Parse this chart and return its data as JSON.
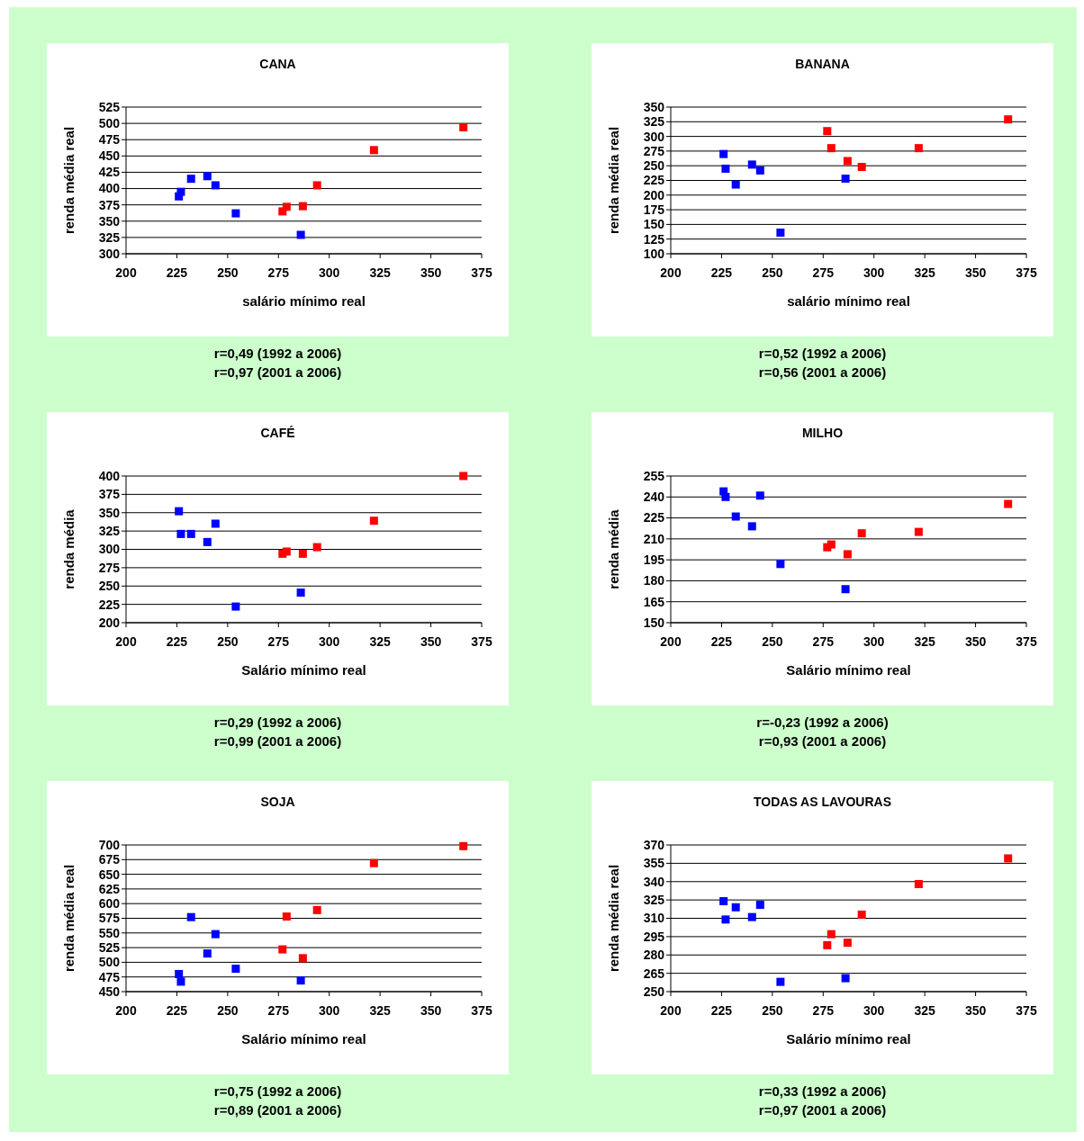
{
  "chart_data": [
    {
      "type": "scatter",
      "title": "CANA",
      "xlabel": "salário mínimo real",
      "ylabel": "renda média real",
      "xlim": [
        200,
        375
      ],
      "xticks": [
        200,
        225,
        250,
        275,
        300,
        325,
        350,
        375
      ],
      "ylim": [
        300,
        525
      ],
      "yticks": [
        300,
        325,
        350,
        375,
        400,
        425,
        450,
        475,
        500,
        525
      ],
      "grid": "y",
      "marker": "square",
      "series": [
        {
          "color": "#0000ff",
          "x": [
            226,
            227,
            232,
            240,
            244,
            254,
            286
          ],
          "values": [
            388,
            395,
            415,
            419,
            405,
            362,
            329
          ]
        },
        {
          "color": "#ff0000",
          "x": [
            277,
            279,
            287,
            294,
            322,
            366
          ],
          "values": [
            365,
            372,
            373,
            405,
            459,
            494
          ]
        }
      ],
      "annotations": [
        "r=0,49 (1992 a 2006)",
        "r=0,97 (2001 a 2006)"
      ]
    },
    {
      "type": "scatter",
      "title": "BANANA",
      "xlabel": "salário mínimo real",
      "ylabel": "renda média real",
      "xlim": [
        200,
        375
      ],
      "xticks": [
        200,
        225,
        250,
        275,
        300,
        325,
        350,
        375
      ],
      "ylim": [
        100,
        350
      ],
      "yticks": [
        100,
        125,
        150,
        175,
        200,
        225,
        250,
        275,
        300,
        325,
        350
      ],
      "grid": "y",
      "marker": "square",
      "series": [
        {
          "color": "#0000ff",
          "x": [
            226,
            227,
            232,
            240,
            244,
            254,
            286
          ],
          "values": [
            270,
            245,
            218,
            252,
            242,
            136,
            228
          ]
        },
        {
          "color": "#ff0000",
          "x": [
            277,
            279,
            287,
            294,
            322,
            366
          ],
          "values": [
            309,
            280,
            258,
            248,
            280,
            329
          ]
        }
      ],
      "annotations": [
        "r=0,52 (1992 a 2006)",
        "r=0,56 (2001 a 2006)"
      ]
    },
    {
      "type": "scatter",
      "title": "CAFÉ",
      "xlabel": "Salário mínimo real",
      "ylabel": "renda média",
      "xlim": [
        200,
        375
      ],
      "xticks": [
        200,
        225,
        250,
        275,
        300,
        325,
        350,
        375
      ],
      "ylim": [
        200,
        400
      ],
      "yticks": [
        200,
        225,
        250,
        275,
        300,
        325,
        350,
        375,
        400
      ],
      "grid": "y",
      "marker": "square",
      "series": [
        {
          "color": "#0000ff",
          "x": [
            226,
            227,
            232,
            240,
            244,
            254,
            286
          ],
          "values": [
            352,
            321,
            321,
            310,
            335,
            222,
            241
          ]
        },
        {
          "color": "#ff0000",
          "x": [
            277,
            279,
            287,
            294,
            322,
            366
          ],
          "values": [
            294,
            297,
            294,
            303,
            339,
            400
          ]
        }
      ],
      "annotations": [
        "r=0,29 (1992 a 2006)",
        "r=0,99 (2001 a 2006)"
      ]
    },
    {
      "type": "scatter",
      "title": "MILHO",
      "xlabel": "Salário mínimo real",
      "ylabel": "renda média",
      "xlim": [
        200,
        375
      ],
      "xticks": [
        200,
        225,
        250,
        275,
        300,
        325,
        350,
        375
      ],
      "ylim": [
        150,
        255
      ],
      "yticks": [
        150,
        165,
        180,
        195,
        210,
        225,
        240,
        255
      ],
      "grid": "y",
      "marker": "square",
      "series": [
        {
          "color": "#0000ff",
          "x": [
            226,
            227,
            232,
            240,
            244,
            254,
            286
          ],
          "values": [
            244,
            240,
            226,
            219,
            241,
            192,
            174
          ]
        },
        {
          "color": "#ff0000",
          "x": [
            277,
            279,
            287,
            294,
            322,
            366
          ],
          "values": [
            204,
            206,
            199,
            214,
            215,
            235
          ]
        }
      ],
      "annotations": [
        "r=-0,23 (1992 a 2006)",
        "r=0,93 (2001 a 2006)"
      ]
    },
    {
      "type": "scatter",
      "title": "SOJA",
      "xlabel": "Salário mínimo real",
      "ylabel": "renda média real",
      "xlim": [
        200,
        375
      ],
      "xticks": [
        200,
        225,
        250,
        275,
        300,
        325,
        350,
        375
      ],
      "ylim": [
        450,
        700
      ],
      "yticks": [
        450,
        475,
        500,
        525,
        550,
        575,
        600,
        625,
        650,
        675,
        700
      ],
      "grid": "y",
      "marker": "square",
      "series": [
        {
          "color": "#0000ff",
          "x": [
            226,
            227,
            232,
            240,
            244,
            254,
            286
          ],
          "values": [
            480,
            467,
            577,
            515,
            548,
            489,
            469
          ]
        },
        {
          "color": "#ff0000",
          "x": [
            277,
            279,
            287,
            294,
            322,
            366
          ],
          "values": [
            522,
            578,
            507,
            589,
            669,
            698
          ]
        }
      ],
      "annotations": [
        "r=0,75 (1992 a 2006)",
        "r=0,89 (2001 a 2006)"
      ]
    },
    {
      "type": "scatter",
      "title": "TODAS AS LAVOURAS",
      "xlabel": "Salário mínimo real",
      "ylabel": "renda média real",
      "xlim": [
        200,
        375
      ],
      "xticks": [
        200,
        225,
        250,
        275,
        300,
        325,
        350,
        375
      ],
      "ylim": [
        250,
        370
      ],
      "yticks": [
        250,
        265,
        280,
        295,
        310,
        325,
        340,
        355,
        370
      ],
      "grid": "y",
      "marker": "square",
      "series": [
        {
          "color": "#0000ff",
          "x": [
            226,
            227,
            232,
            240,
            244,
            254,
            286
          ],
          "values": [
            324,
            309,
            319,
            311,
            321,
            258,
            261
          ]
        },
        {
          "color": "#ff0000",
          "x": [
            277,
            279,
            287,
            294,
            322,
            366
          ],
          "values": [
            288,
            297,
            290,
            313,
            338,
            359
          ]
        }
      ],
      "annotations": [
        "r=0,33 (1992 a 2006)",
        "r=0,97 (2001 a 2006)"
      ]
    }
  ]
}
